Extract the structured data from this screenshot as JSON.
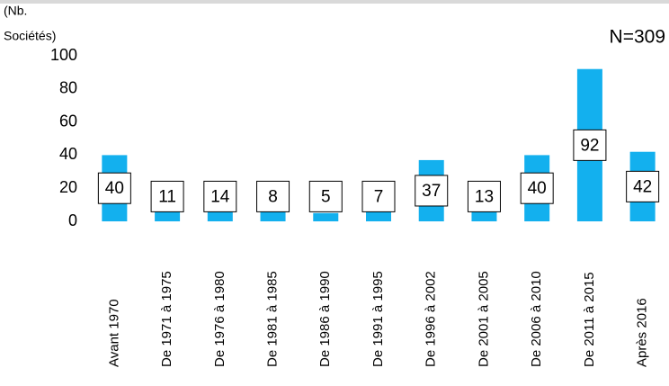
{
  "chart_data": {
    "type": "bar",
    "ylabel_lines": [
      "(Nb.",
      "Sociétés)"
    ],
    "annotation": "N=309",
    "categories": [
      "Avant 1970",
      "De 1971 à 1975",
      "De 1976 à 1980",
      "De 1981 à 1985",
      "De 1986 à 1990",
      "De 1991 à 1995",
      "De 1996 à 2002",
      "De 2001 à 2005",
      "De 2006 à 2010",
      "De 2011 à 2015",
      "Après 2016"
    ],
    "values": [
      40,
      11,
      14,
      8,
      5,
      7,
      37,
      13,
      40,
      92,
      42
    ],
    "color": "#13b0ee",
    "ylim": [
      0,
      100
    ],
    "yticks": [
      0,
      20,
      40,
      60,
      80,
      100
    ],
    "grid": false
  }
}
